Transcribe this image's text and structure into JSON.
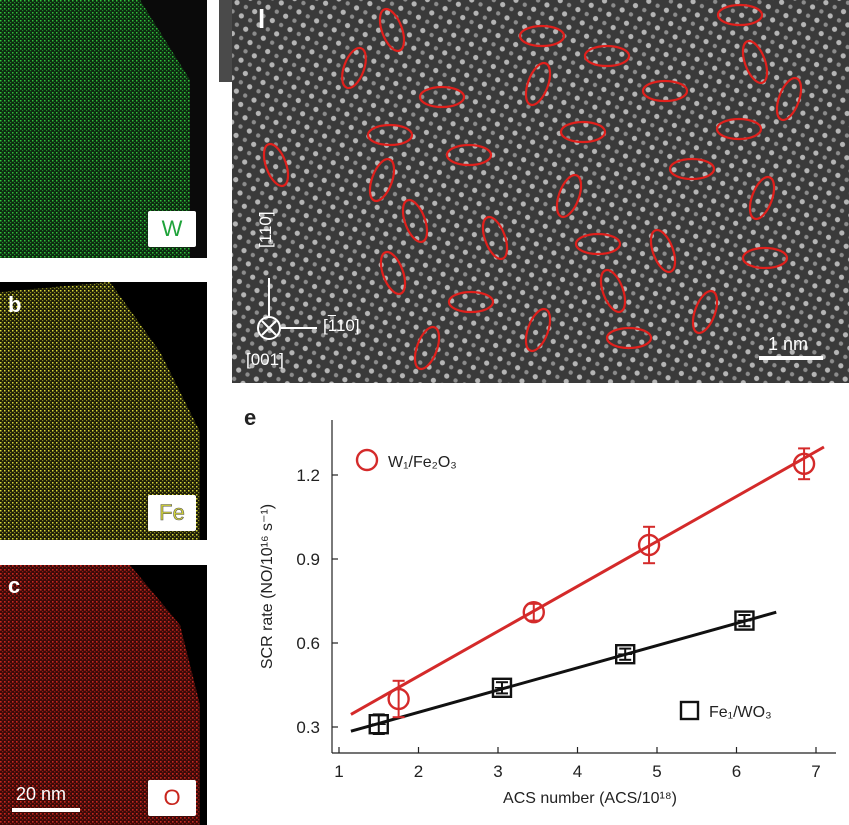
{
  "panels": {
    "a": {
      "letter": "",
      "element": "W",
      "color": "#1fa33a"
    },
    "b": {
      "letter": "b",
      "element": "Fe",
      "color": "#d8d838"
    },
    "c": {
      "letter": "c",
      "element": "O",
      "color": "#c8261e",
      "scale_bar": "20 nm"
    },
    "d": {
      "letter": "l",
      "scale_bar": "1 nm",
      "directions": {
        "up": "[110]",
        "right": "[-110]",
        "normal": "[001]"
      }
    },
    "e": {
      "letter": "e"
    }
  },
  "colors": {
    "w1_series": "#d42a2a",
    "fe1_series": "#111111",
    "green": "#1fa33a",
    "yellow": "#d8d838",
    "red": "#c8261e"
  },
  "chart_data": {
    "type": "scatter",
    "xlabel": "ACS number (ACS/10¹⁸)",
    "ylabel": "SCR rate (NO/10¹⁶ s⁻¹)",
    "xlim": [
      1,
      7.3
    ],
    "ylim": [
      0.23,
      1.38
    ],
    "xticks": [
      1,
      2,
      3,
      4,
      5,
      6,
      7
    ],
    "yticks": [
      0.3,
      0.6,
      0.9,
      1.2
    ],
    "ytick_labels": [
      "0.3",
      "0.6",
      "0.9",
      "1.2"
    ],
    "grid": false,
    "legend": "inside",
    "series": [
      {
        "name": "W₁/Fe₂O₃",
        "marker": "circle",
        "color": "#d42a2a",
        "x": [
          1.75,
          3.45,
          4.9,
          6.85
        ],
        "y": [
          0.4,
          0.71,
          0.95,
          1.24
        ],
        "yerr": [
          0.065,
          0.03,
          0.065,
          0.055
        ],
        "fit": {
          "x": [
            1.15,
            7.1
          ],
          "y": [
            0.345,
            1.3
          ]
        }
      },
      {
        "name": "Fe₁/WO₃",
        "marker": "square",
        "color": "#111111",
        "x": [
          1.5,
          3.05,
          4.6,
          6.1
        ],
        "y": [
          0.31,
          0.44,
          0.56,
          0.68
        ],
        "yerr": [
          0.035,
          0.02,
          0.02,
          0.02
        ],
        "fit": {
          "x": [
            1.15,
            6.5
          ],
          "y": [
            0.285,
            0.71
          ]
        }
      }
    ]
  }
}
